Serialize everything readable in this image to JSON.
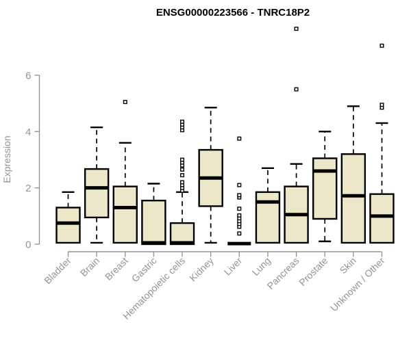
{
  "header": {
    "title": "ENSG00000223566 - TNRC18P2"
  },
  "colors": {
    "background": "#ffffff",
    "box_fill": "#ECE7C8",
    "box_border": "#000000",
    "median": "#000000",
    "whisker": "#000000",
    "outlier_stroke": "#000000",
    "outlier_fill": "#ffffff",
    "axis": "#949494",
    "tick_text": "#949494",
    "title_text": "#000000"
  },
  "chart_data": {
    "type": "boxplot",
    "title": "ENSG00000223566 - TNRC18P2",
    "xlabel": "",
    "ylabel": "Expression",
    "ylim": [
      0,
      7.7
    ],
    "yticks": [
      0,
      2,
      4,
      6
    ],
    "grid": false,
    "legend": "none",
    "categories": [
      "Bladder",
      "Brain",
      "Breast",
      "Gastric",
      "Hematopoietic cells",
      "Kidney",
      "Liver",
      "Lung",
      "Pancreas",
      "Prostate",
      "Skin",
      "Unknown / Other"
    ],
    "series": [
      {
        "name": "Bladder",
        "whisker_low": 0.05,
        "q1": 0.05,
        "median": 0.75,
        "q3": 1.3,
        "whisker_high": 1.85,
        "outliers": []
      },
      {
        "name": "Brain",
        "whisker_low": 0.05,
        "q1": 0.95,
        "median": 2.0,
        "q3": 2.67,
        "whisker_high": 4.15,
        "outliers": []
      },
      {
        "name": "Breast",
        "whisker_low": 0.05,
        "q1": 0.05,
        "median": 1.3,
        "q3": 2.05,
        "whisker_high": 3.6,
        "outliers": [
          5.05
        ]
      },
      {
        "name": "Gastric",
        "whisker_low": 0.0,
        "q1": 0.0,
        "median": 0.05,
        "q3": 1.55,
        "whisker_high": 2.15,
        "outliers": []
      },
      {
        "name": "Hematopoietic cells",
        "whisker_low": 0.0,
        "q1": 0.0,
        "median": 0.05,
        "q3": 0.75,
        "whisker_high": 1.85,
        "outliers": [
          1.9,
          2.0,
          2.1,
          2.2,
          2.45,
          2.65,
          2.8,
          2.9,
          3.0,
          4.05,
          4.15,
          4.25,
          4.35
        ]
      },
      {
        "name": "Kidney",
        "whisker_low": 0.05,
        "q1": 1.35,
        "median": 2.35,
        "q3": 3.35,
        "whisker_high": 4.85,
        "outliers": []
      },
      {
        "name": "Liver",
        "whisker_low": 0.02,
        "q1": 0.02,
        "median": 0.02,
        "q3": 0.02,
        "whisker_high": 0.02,
        "outliers": [
          0.38,
          0.62,
          0.72,
          0.82,
          0.92,
          1.02,
          1.26,
          1.66,
          1.74,
          2.1,
          3.75
        ]
      },
      {
        "name": "Lung",
        "whisker_low": 0.05,
        "q1": 0.05,
        "median": 1.5,
        "q3": 1.85,
        "whisker_high": 2.7,
        "outliers": []
      },
      {
        "name": "Pancreas",
        "whisker_low": 0.05,
        "q1": 0.05,
        "median": 1.05,
        "q3": 2.05,
        "whisker_high": 2.85,
        "outliers": [
          5.5,
          7.65
        ]
      },
      {
        "name": "Prostate",
        "whisker_low": 0.1,
        "q1": 0.9,
        "median": 2.6,
        "q3": 3.05,
        "whisker_high": 4.0,
        "outliers": []
      },
      {
        "name": "Skin",
        "whisker_low": 0.05,
        "q1": 0.05,
        "median": 1.72,
        "q3": 3.2,
        "whisker_high": 4.9,
        "outliers": []
      },
      {
        "name": "Unknown / Other",
        "whisker_low": 0.05,
        "q1": 0.05,
        "median": 1.0,
        "q3": 1.78,
        "whisker_high": 4.3,
        "outliers": [
          4.85,
          4.95,
          7.05
        ]
      }
    ]
  }
}
